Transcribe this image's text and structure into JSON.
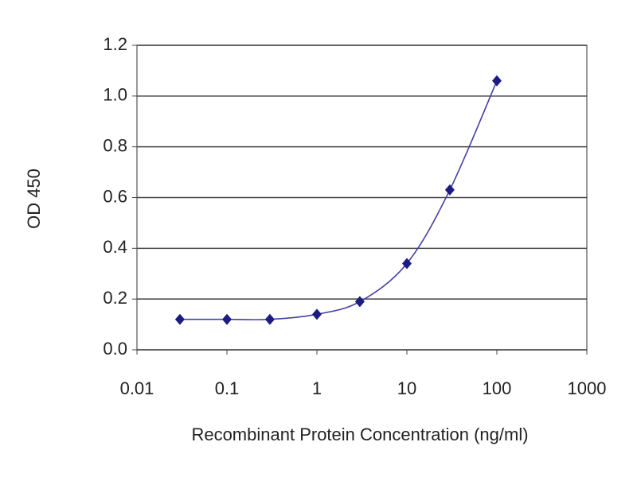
{
  "chart_data": {
    "type": "line",
    "x_label": "Recombinant Protein Concentration (ng/ml)",
    "y_label": "OD 450",
    "x": [
      0.03,
      0.1,
      0.3,
      1,
      3,
      10,
      30,
      100
    ],
    "values": [
      0.12,
      0.12,
      0.12,
      0.14,
      0.19,
      0.34,
      0.63,
      1.06
    ],
    "color": "#1c1c82",
    "line_color": "#4040a8",
    "xscale": "log",
    "xlim": [
      0.01,
      1000
    ],
    "xticks": [
      0.01,
      0.1,
      1,
      10,
      100,
      1000
    ],
    "ylim": [
      0,
      1.2
    ],
    "yticks": [
      {
        "value": 0,
        "label": "0.0"
      },
      0.2,
      0.4,
      0.6,
      0.8,
      {
        "value": 1,
        "label": "1.0"
      },
      1.2
    ],
    "grid": true
  }
}
